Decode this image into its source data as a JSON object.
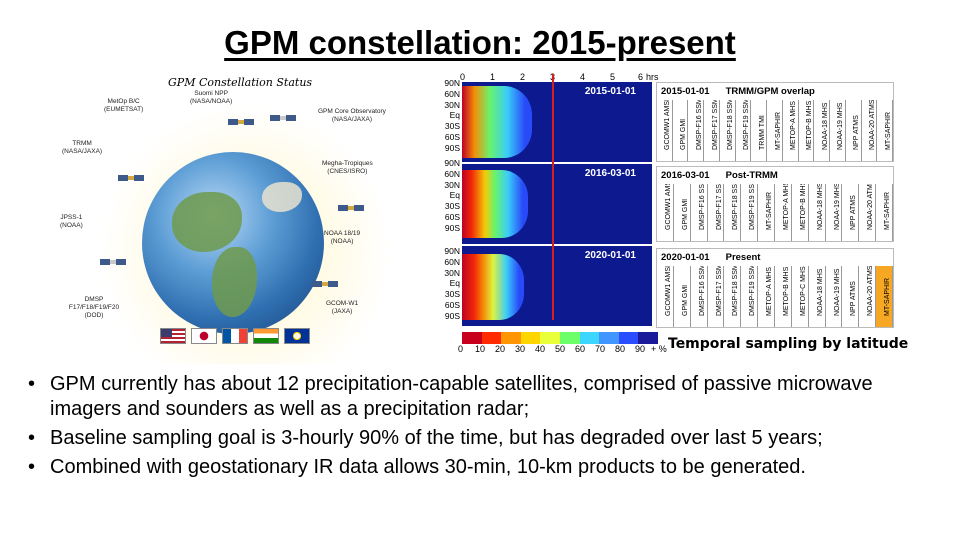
{
  "slide": {
    "title": "GPM constellation: 2015-present",
    "caption": "Temporal sampling by latitude",
    "bullets": [
      "GPM currently has about 12 precipitation-capable satellites, comprised of passive microwave imagers and sounders as well as a precipitation radar;",
      "Baseline sampling goal is 3-hourly 90% of the time, but has degraded over last 5 years;",
      "Combined with geostationary IR data allows 30-min, 10-km products to be generated."
    ]
  },
  "constellation": {
    "title": "GPM Constellation Status",
    "satellites": [
      {
        "name": "Suomi NPP",
        "agency": "(NASA/NOAA)"
      },
      {
        "name": "MetOp B/C",
        "agency": "(EUMETSAT)"
      },
      {
        "name": "GPM Core Observatory",
        "agency": "(NASA/JAXA)"
      },
      {
        "name": "TRMM",
        "agency": "(NASA/JAXA)"
      },
      {
        "name": "Megha-Tropiques",
        "agency": "(CNES/ISRO)"
      },
      {
        "name": "JPSS-1",
        "agency": "(NOAA)"
      },
      {
        "name": "NOAA 18/19",
        "agency": "(NOAA)"
      },
      {
        "name": "DMSP F17/F18/F19/F20",
        "agency": "(DOD)"
      },
      {
        "name": "GCOM-W1",
        "agency": "(JAXA)"
      }
    ]
  },
  "latitude_panel": {
    "hours_unit": "hrs",
    "hour_ticks": [
      "0",
      "1",
      "2",
      "3",
      "4",
      "5",
      "6"
    ],
    "latitudes": [
      "90N",
      "60N",
      "30N",
      "Eq",
      "30S",
      "60S",
      "90S"
    ],
    "dates": [
      "2015-01-01",
      "2016-03-01",
      "2020-01-01"
    ],
    "colorbar_ticks": [
      "0",
      "10",
      "20",
      "30",
      "40",
      "50",
      "60",
      "70",
      "80",
      "90"
    ],
    "colorbar_unit": "+ %",
    "colorbar_colors": [
      "#c8001e",
      "#ff2a00",
      "#ff9500",
      "#ffd500",
      "#e8ff3a",
      "#6cff6a",
      "#3cd6ff",
      "#4096ff",
      "#2a4dff",
      "#1a1a9a"
    ]
  },
  "tables": [
    {
      "date": "2015-01-01",
      "label": "TRMM/GPM overlap",
      "columns": [
        "GCOMW1 AMSR2",
        "GPM GMI",
        "DMSP-F16 SSMIS",
        "DMSP-F17 SSMIS",
        "DMSP-F18 SSMIS",
        "DMSP-F19 SSMIS",
        "TRMM TMI",
        "MT-SAPHIR",
        "METOP-A MHS",
        "METOP-B MHS",
        "NOAA-18 MHS",
        "NOAA-19 MHS",
        "NPP ATMS",
        "NOAA-20 ATMS",
        "MT-SAPHIR"
      ]
    },
    {
      "date": "2016-03-01",
      "label": "Post-TRMM",
      "columns": [
        "GCOMW1 AMSR2",
        "GPM GMI",
        "DMSP-F16 SSMIS",
        "DMSP-F17 SSMIS",
        "DMSP-F18 SSMIS",
        "DMSP-F19 SSMIS",
        "MT-SAPHIR",
        "METOP-A MHS",
        "METOP-B MHS",
        "NOAA-18 MHS",
        "NOAA-19 MHS",
        "NPP ATMS",
        "NOAA-20 ATMS",
        "MT-SAPHIR"
      ]
    },
    {
      "date": "2020-01-01",
      "label": "Present",
      "columns": [
        "GCOMW1 AMSR2",
        "GPM GMI",
        "DMSP-F16 SSMIS",
        "DMSP-F17 SSMIS",
        "DMSP-F18 SSMIS",
        "DMSP-F19 SSMIS",
        "METOP-A MHS",
        "METOP-B MHS",
        "METOP-C MHS",
        "NOAA-18 MHS",
        "NOAA-19 MHS",
        "NPP ATMS",
        "NOAA-20 ATMS",
        "MT-SAPHIR"
      ]
    }
  ]
}
